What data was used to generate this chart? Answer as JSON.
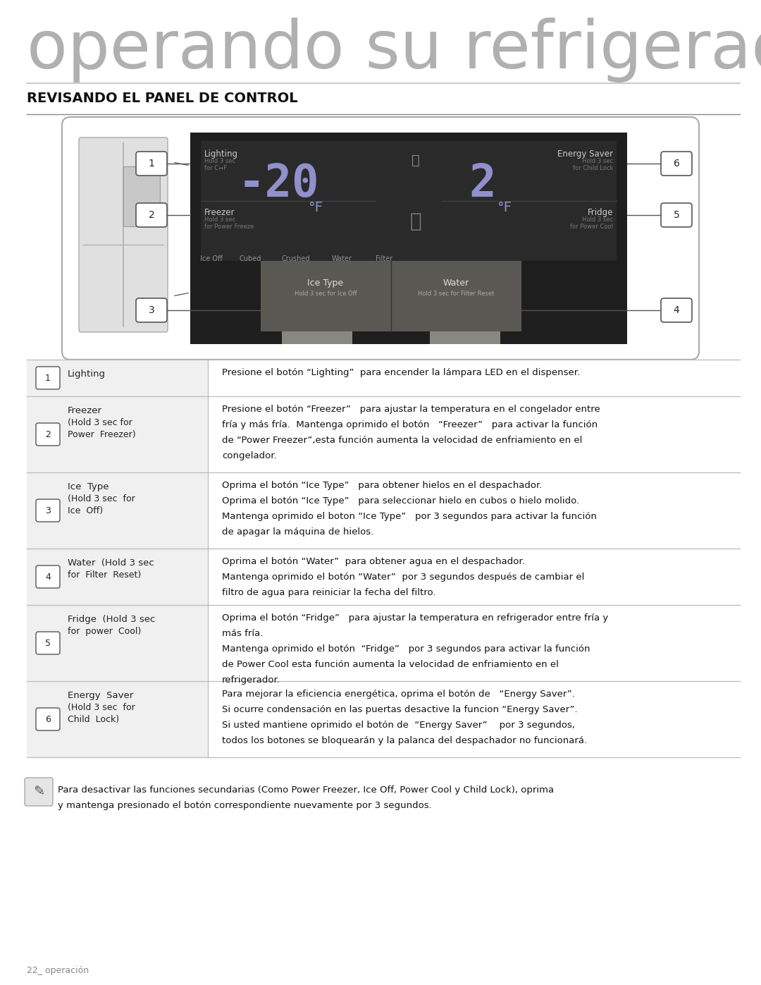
{
  "title": "operando su refrigerador side-by-side",
  "section_title": "REVISANDO EL PANEL DE CONTROL",
  "bg_color": "#ffffff",
  "title_color": "#b0b0b0",
  "section_color": "#111111",
  "table_rows": [
    {
      "number": "1",
      "label": "Lighting",
      "label_extra": [],
      "description": "Presione el botón “Lighting”  para encender la lámpara LED en el dispenser."
    },
    {
      "number": "2",
      "label": "Freezer",
      "label_extra": [
        "(Hold 3 sec for",
        "Power  Freezer)"
      ],
      "description": "Presione el botón “Freezer”   para ajustar la temperatura en el congelador entre\nfría y más fría.  Mantenga oprimido el botón   “Freezer”   para activar la función\nde “Power Freezer”,esta función aumenta la velocidad de enfriamiento en el\ncongelador."
    },
    {
      "number": "3",
      "label": "Ice  Type",
      "label_extra": [
        "(Hold 3 sec  for",
        "Ice  Off)"
      ],
      "description": "Oprima el botón “Ice Type”   para obtener hielos en el despachador.\nOprima el botón “Ice Type”   para seleccionar hielo en cubos o hielo molido.\nMantenga oprimido el boton “Ice Type”   por 3 segundos para activar la función\nde apagar la máquina de hielos."
    },
    {
      "number": "4",
      "label": "Water  (Hold 3 sec",
      "label_extra": [
        "for  Filter  Reset)"
      ],
      "description": "Oprima el botón “Water”  para obtener agua en el despachador.\nMantenga oprimido el botón “Water”  por 3 segundos después de cambiar el\nfiltro de agua para reiniciar la fecha del filtro."
    },
    {
      "number": "5",
      "label": "Fridge  (Hold 3 sec",
      "label_extra": [
        "for  power  Cool)"
      ],
      "description": "Oprima el botón “Fridge”   para ajustar la temperatura en refrigerador entre fría y\nmás fría.\nMantenga oprimido el botón  “Fridge”   por 3 segundos para activar la función\nde Power Cool esta función aumenta la velocidad de enfriamiento en el\nrefrigerador."
    },
    {
      "number": "6",
      "label": "Energy  Saver",
      "label_extra": [
        "(Hold 3 sec  for",
        "Child  Lock)"
      ],
      "description": "Para mejorar la eficiencia energética, oprima el botón de   “Energy Saver”.\nSi ocurre condensación en las puertas desactive la funcion “Energy Saver”.\nSi usted mantiene oprimido el botón de  “Energy Saver”    por 3 segundos,\ntodos los botones se bloquearán y la palanca del despachador no funcionará."
    }
  ],
  "footnote_line1": "Para desactivar las funciones secundarias (Como Power Freezer, Ice Off, Power Cool y Child Lock), oprima",
  "footnote_line2": "y mantenga presionado el botón correspondiente nuevamente por 3 segundos.",
  "page_label": "22_ operación"
}
